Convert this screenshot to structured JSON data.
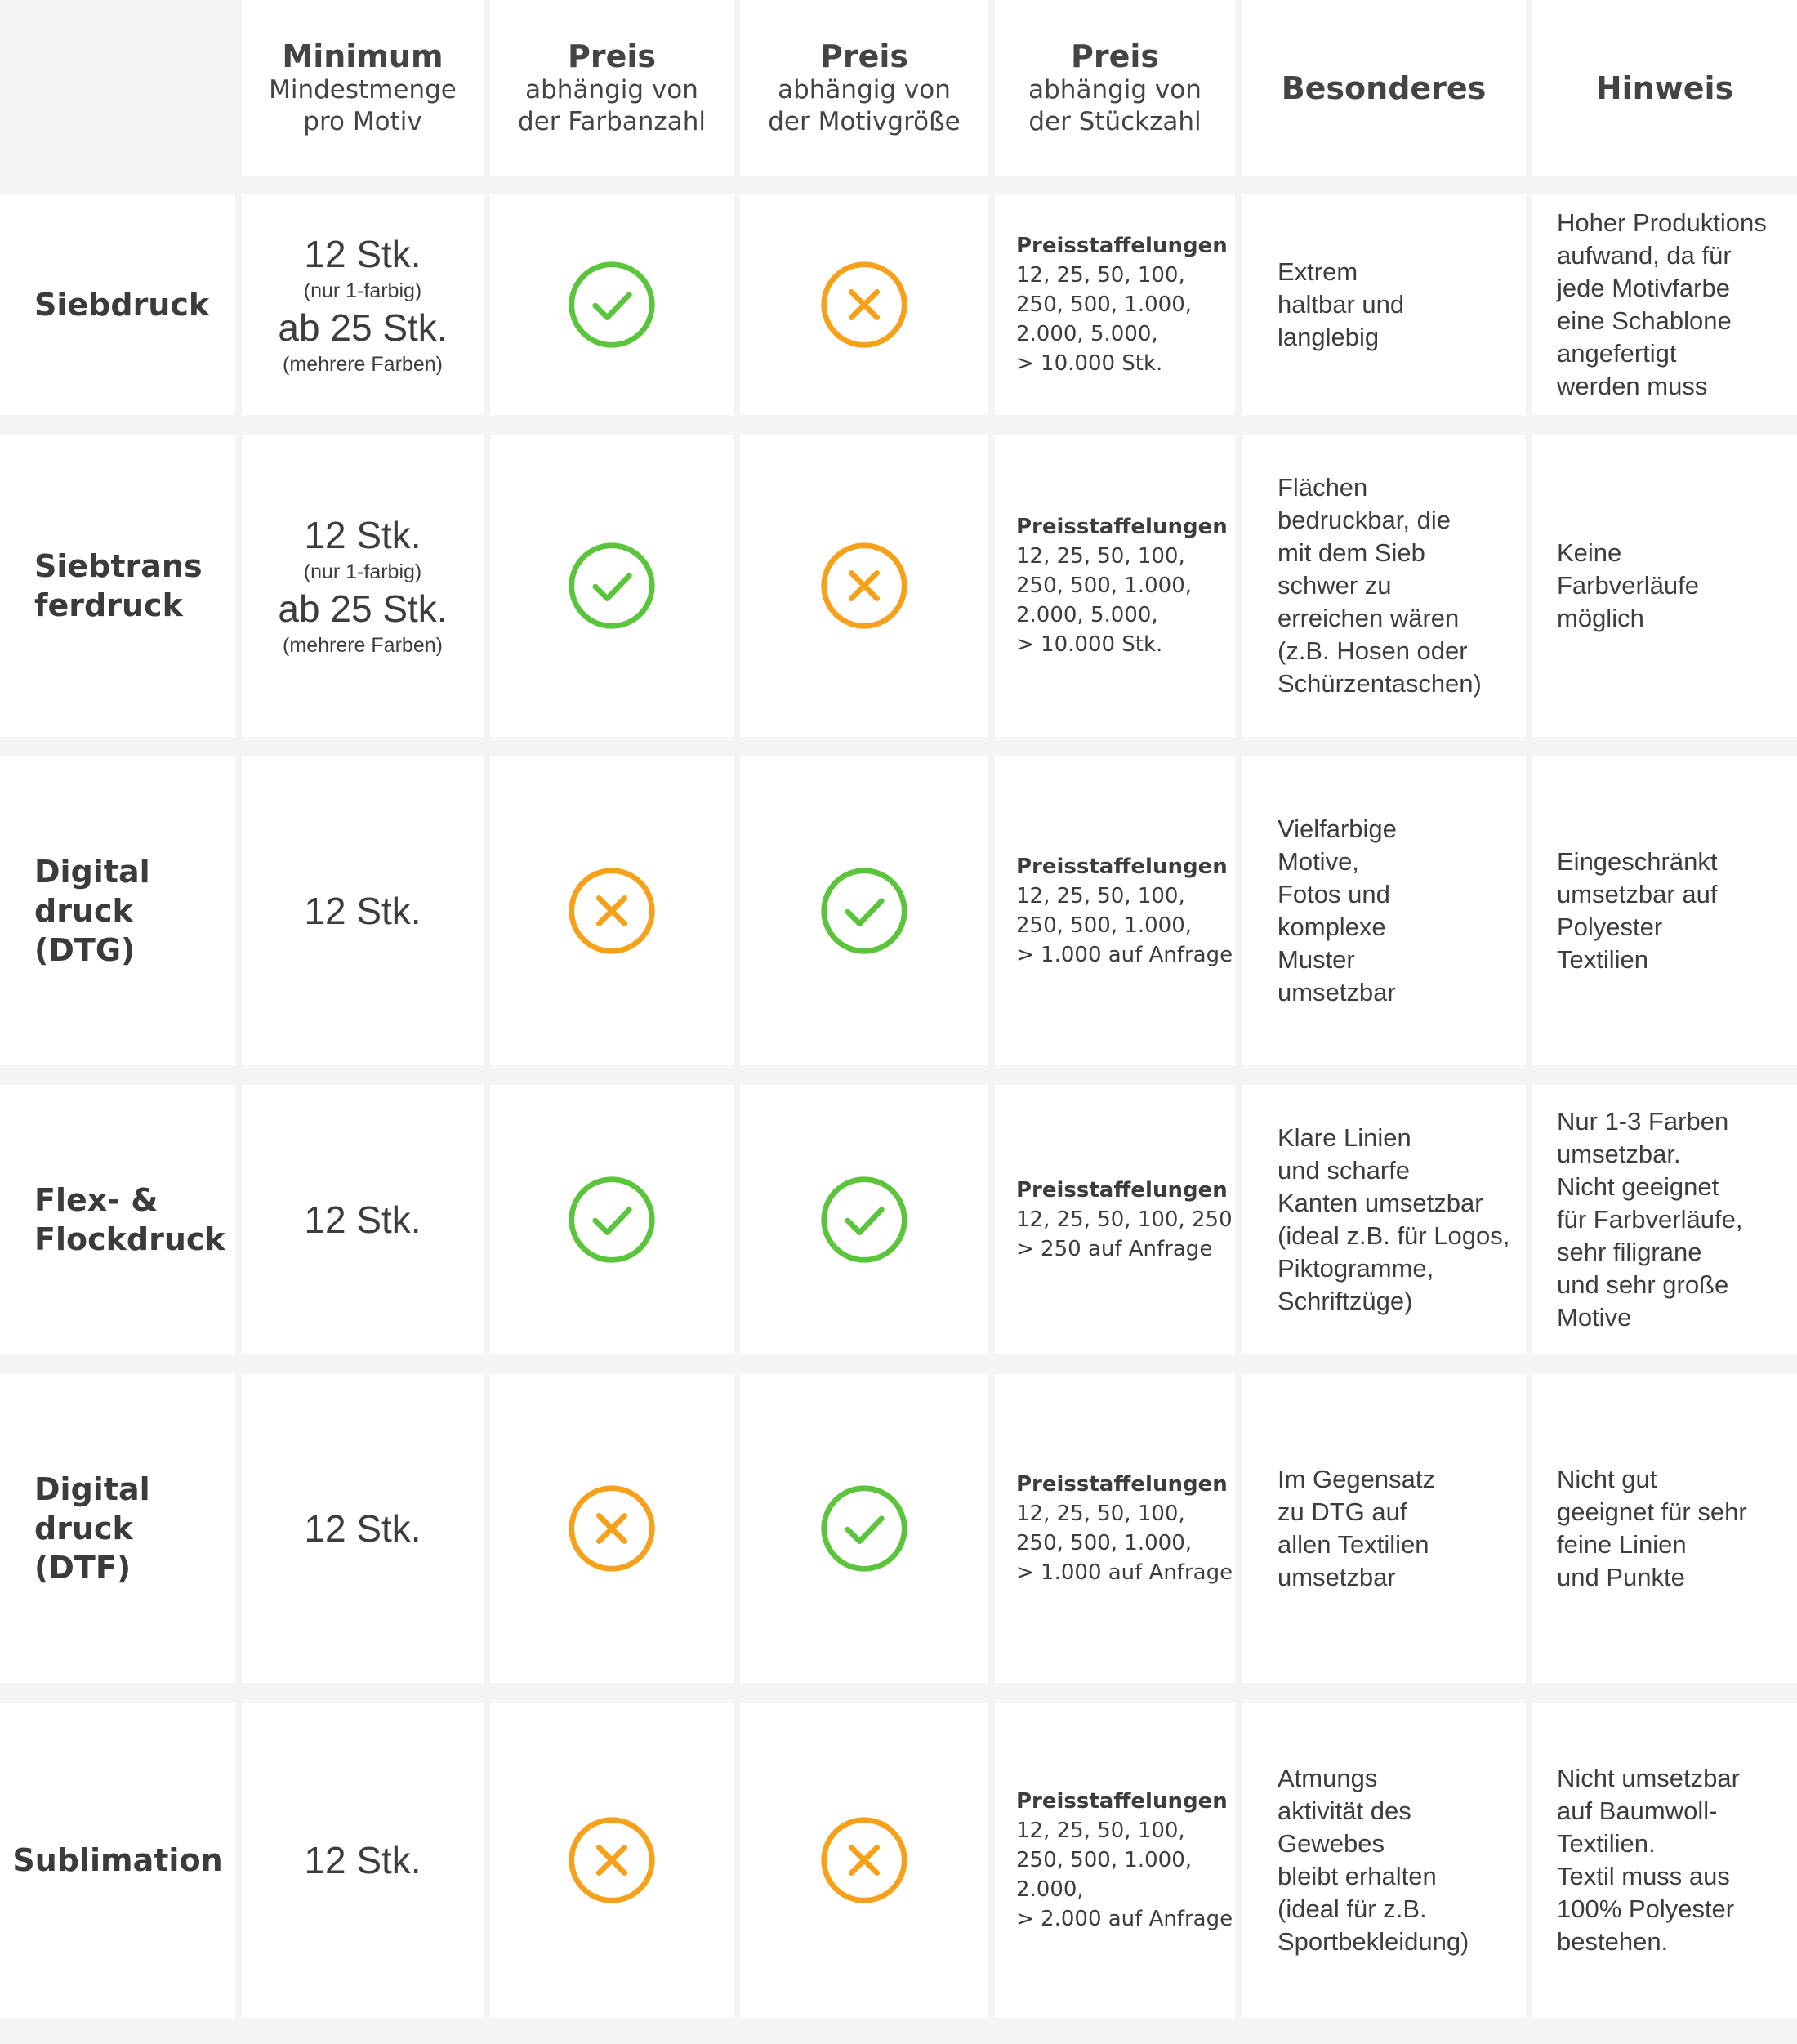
{
  "colors": {
    "check": "#5ac43a",
    "cross": "#f7a11a",
    "cell_bg": "#ffffff",
    "gap_bg": "#f4f4f4"
  },
  "header": {
    "min_title": "Minimum",
    "min_sub": "Mindestmenge\npro Motiv",
    "farb_title": "Preis",
    "farb_sub": "abhängig von\nder Farbanzahl",
    "motiv_title": "Preis",
    "motiv_sub": "abhängig von\nder Motivgröße",
    "stueck_title": "Preis",
    "stueck_sub": "abhängig von\nder Stückzahl",
    "besonderes": "Besonderes",
    "hinweis": "Hinweis"
  },
  "rows": [
    {
      "name": "Siebdruck",
      "min_big1": "12 Stk.",
      "min_small1": "(nur 1-farbig)",
      "min_big2": "ab 25 Stk.",
      "min_small2": "(mehrere Farben)",
      "farbe_icon": "check-icon",
      "motiv_icon": "cross-icon",
      "price_title": "Preisstaffelungen",
      "price_text": "12, 25, 50, 100,\n250, 500, 1.000,\n2.000, 5.000,\n> 10.000 Stk.",
      "besonderes": "Extrem\nhaltbar und\nlanglebig",
      "hinweis": "Hoher Produktions\naufwand, da für\njede Motivfarbe\neine Schablone\nangefertigt\nwerden muss"
    },
    {
      "name": "Siebtrans\nferdruck",
      "min_big1": "12 Stk.",
      "min_small1": "(nur 1-farbig)",
      "min_big2": "ab 25 Stk.",
      "min_small2": "(mehrere Farben)",
      "farbe_icon": "check-icon",
      "motiv_icon": "cross-icon",
      "price_title": "Preisstaffelungen",
      "price_text": "12, 25, 50, 100,\n250, 500, 1.000,\n2.000, 5.000,\n> 10.000 Stk.",
      "besonderes": "Flächen\nbedruckbar, die\nmit dem Sieb\nschwer zu\nerreichen wären\n(z.B. Hosen oder\nSchürzentaschen)",
      "hinweis": "Keine\nFarbverläufe\nmöglich"
    },
    {
      "name": "Digital\ndruck (DTG)",
      "min_big1": "12 Stk.",
      "farbe_icon": "cross-icon",
      "motiv_icon": "check-icon",
      "price_title": "Preisstaffelungen",
      "price_text": "12, 25, 50, 100,\n250, 500, 1.000,\n> 1.000 auf Anfrage",
      "besonderes": "Vielfarbige\nMotive,\nFotos und\nkomplexe\nMuster\numsetzbar",
      "hinweis": "Eingeschränkt\numsetzbar auf\nPolyester\nTextilien"
    },
    {
      "name": "Flex- &\nFlockdruck",
      "min_big1": "12 Stk.",
      "farbe_icon": "check-icon",
      "motiv_icon": "check-icon",
      "price_title": "Preisstaffelungen",
      "price_text": "12, 25, 50, 100, 250\n> 250 auf Anfrage",
      "besonderes": "Klare Linien\nund scharfe\nKanten umsetzbar\n(ideal z.B. für Logos,\nPiktogramme,\nSchriftzüge)",
      "hinweis": "Nur 1-3 Farben\numsetzbar.\nNicht geeignet\nfür Farbverläufe,\nsehr filigrane\nund sehr große\nMotive"
    },
    {
      "name": "Digital\ndruck (DTF)",
      "min_big1": "12 Stk.",
      "farbe_icon": "cross-icon",
      "motiv_icon": "check-icon",
      "price_title": "Preisstaffelungen",
      "price_text": "12, 25, 50, 100,\n250, 500, 1.000,\n> 1.000 auf Anfrage",
      "besonderes": "Im Gegensatz\nzu DTG auf\nallen Textilien\numsetzbar",
      "hinweis": "Nicht gut\ngeeignet für sehr\nfeine Linien\nund Punkte"
    },
    {
      "name": "Sublimation",
      "min_big1": "12 Stk.",
      "farbe_icon": "cross-icon",
      "motiv_icon": "cross-icon",
      "price_title": "Preisstaffelungen",
      "price_text": "12, 25, 50, 100,\n250, 500, 1.000,\n2.000,\n> 2.000 auf Anfrage",
      "besonderes": "Atmungs\naktivität des\nGewebes\nbleibt erhalten\n(ideal für z.B.\nSportbekleidung)",
      "hinweis": "Nicht umsetzbar\nauf Baumwoll-\nTextilien.\nTextil muss aus\n100% Polyester\nbestehen."
    }
  ]
}
